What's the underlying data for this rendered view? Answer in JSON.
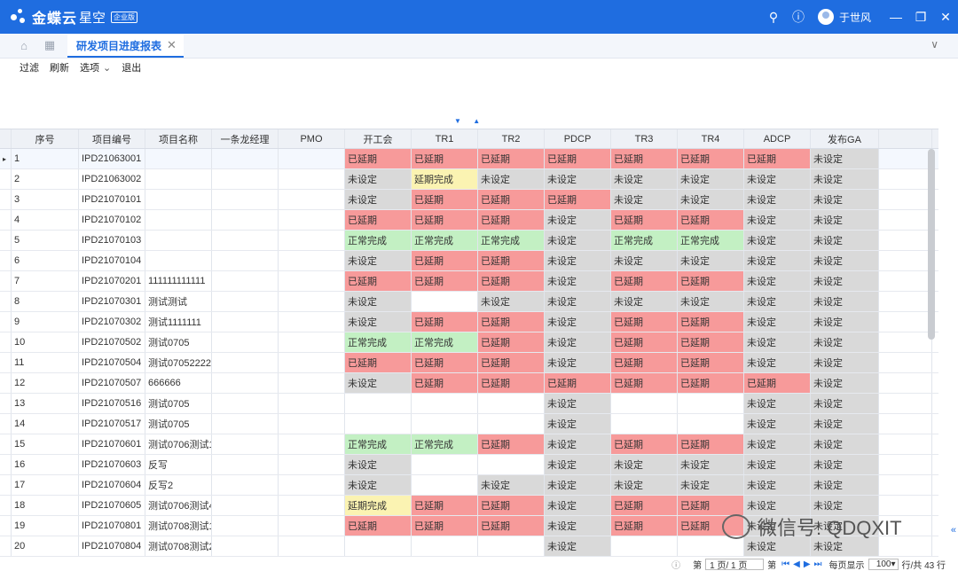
{
  "app": {
    "brand": "金蝶云",
    "brand_sub": "星空",
    "badge": "企业版",
    "user": "于世风"
  },
  "tabs": [
    {
      "label": "研发项目进度报表"
    }
  ],
  "toolbar": {
    "filter": "过滤",
    "refresh": "刷新",
    "options": "选项",
    "exit": "退出"
  },
  "columns": [
    "序号",
    "项目编号",
    "项目名称",
    "一条龙经理",
    "PMO",
    "开工会",
    "TR1",
    "TR2",
    "PDCP",
    "TR3",
    "TR4",
    "ADCP",
    "发布GA"
  ],
  "colors": {
    "red": "#f79a9a",
    "grey": "#d9d9d9",
    "green": "#c3f0c3",
    "yellow": "#fbf3b2",
    "accent": "#1f6de0"
  },
  "rows": [
    {
      "seq": "1",
      "code": "IPD21063001",
      "name": "",
      "s": [
        "已延期",
        "已延期",
        "已延期",
        "已延期",
        "已延期",
        "已延期",
        "已延期",
        "未设定"
      ],
      "c": [
        "r",
        "r",
        "r",
        "r",
        "r",
        "r",
        "r",
        "g"
      ]
    },
    {
      "seq": "2",
      "code": "IPD21063002",
      "name": "",
      "s": [
        "未设定",
        "延期完成",
        "未设定",
        "未设定",
        "未设定",
        "未设定",
        "未设定",
        "未设定"
      ],
      "c": [
        "g",
        "y",
        "g",
        "g",
        "g",
        "g",
        "g",
        "g"
      ]
    },
    {
      "seq": "3",
      "code": "IPD21070101",
      "name": "",
      "s": [
        "未设定",
        "已延期",
        "已延期",
        "已延期",
        "未设定",
        "未设定",
        "未设定",
        "未设定"
      ],
      "c": [
        "g",
        "r",
        "r",
        "r",
        "g",
        "g",
        "g",
        "g"
      ]
    },
    {
      "seq": "4",
      "code": "IPD21070102",
      "name": "",
      "s": [
        "已延期",
        "已延期",
        "已延期",
        "未设定",
        "已延期",
        "已延期",
        "未设定",
        "未设定"
      ],
      "c": [
        "r",
        "r",
        "r",
        "g",
        "r",
        "r",
        "g",
        "g"
      ]
    },
    {
      "seq": "5",
      "code": "IPD21070103",
      "name": "",
      "s": [
        "正常完成",
        "正常完成",
        "正常完成",
        "未设定",
        "正常完成",
        "正常完成",
        "未设定",
        "未设定"
      ],
      "c": [
        "gr",
        "gr",
        "gr",
        "g",
        "gr",
        "gr",
        "g",
        "g"
      ]
    },
    {
      "seq": "6",
      "code": "IPD21070104",
      "name": "",
      "s": [
        "未设定",
        "已延期",
        "已延期",
        "未设定",
        "未设定",
        "未设定",
        "未设定",
        "未设定"
      ],
      "c": [
        "g",
        "r",
        "r",
        "g",
        "g",
        "g",
        "g",
        "g"
      ]
    },
    {
      "seq": "7",
      "code": "IPD21070201",
      "name": "111111111111",
      "s": [
        "已延期",
        "已延期",
        "已延期",
        "未设定",
        "已延期",
        "已延期",
        "未设定",
        "未设定"
      ],
      "c": [
        "r",
        "r",
        "r",
        "g",
        "r",
        "r",
        "g",
        "g"
      ]
    },
    {
      "seq": "8",
      "code": "IPD21070301",
      "name": "测试测试",
      "s": [
        "未设定",
        "",
        "未设定",
        "未设定",
        "未设定",
        "未设定",
        "未设定",
        "未设定"
      ],
      "c": [
        "g",
        "w",
        "g",
        "g",
        "g",
        "g",
        "g",
        "g"
      ]
    },
    {
      "seq": "9",
      "code": "IPD21070302",
      "name": "测试1111111",
      "s": [
        "未设定",
        "已延期",
        "已延期",
        "未设定",
        "已延期",
        "已延期",
        "未设定",
        "未设定"
      ],
      "c": [
        "g",
        "r",
        "r",
        "g",
        "r",
        "r",
        "g",
        "g"
      ]
    },
    {
      "seq": "10",
      "code": "IPD21070502",
      "name": "测试0705",
      "s": [
        "正常完成",
        "正常完成",
        "已延期",
        "未设定",
        "已延期",
        "已延期",
        "未设定",
        "未设定"
      ],
      "c": [
        "gr",
        "gr",
        "r",
        "g",
        "r",
        "r",
        "g",
        "g"
      ]
    },
    {
      "seq": "11",
      "code": "IPD21070504",
      "name": "测试07052222",
      "s": [
        "已延期",
        "已延期",
        "已延期",
        "未设定",
        "已延期",
        "已延期",
        "未设定",
        "未设定"
      ],
      "c": [
        "r",
        "r",
        "r",
        "g",
        "r",
        "r",
        "g",
        "g"
      ]
    },
    {
      "seq": "12",
      "code": "IPD21070507",
      "name": "666666",
      "s": [
        "未设定",
        "已延期",
        "已延期",
        "已延期",
        "已延期",
        "已延期",
        "已延期",
        "未设定"
      ],
      "c": [
        "g",
        "r",
        "r",
        "r",
        "r",
        "r",
        "r",
        "g"
      ]
    },
    {
      "seq": "13",
      "code": "IPD21070516",
      "name": "测试0705",
      "s": [
        "",
        "",
        "",
        "未设定",
        "",
        "",
        "未设定",
        "未设定"
      ],
      "c": [
        "w",
        "w",
        "w",
        "g",
        "w",
        "w",
        "g",
        "g"
      ]
    },
    {
      "seq": "14",
      "code": "IPD21070517",
      "name": "测试0705",
      "s": [
        "",
        "",
        "",
        "未设定",
        "",
        "",
        "未设定",
        "未设定"
      ],
      "c": [
        "w",
        "w",
        "w",
        "g",
        "w",
        "w",
        "g",
        "g"
      ]
    },
    {
      "seq": "15",
      "code": "IPD21070601",
      "name": "测试0706测试1",
      "s": [
        "正常完成",
        "正常完成",
        "已延期",
        "未设定",
        "已延期",
        "已延期",
        "未设定",
        "未设定"
      ],
      "c": [
        "gr",
        "gr",
        "r",
        "g",
        "r",
        "r",
        "g",
        "g"
      ]
    },
    {
      "seq": "16",
      "code": "IPD21070603",
      "name": "反写",
      "s": [
        "未设定",
        "",
        "",
        "未设定",
        "未设定",
        "未设定",
        "未设定",
        "未设定"
      ],
      "c": [
        "g",
        "w",
        "w",
        "g",
        "g",
        "g",
        "g",
        "g"
      ]
    },
    {
      "seq": "17",
      "code": "IPD21070604",
      "name": "反写2",
      "s": [
        "未设定",
        "",
        "未设定",
        "未设定",
        "未设定",
        "未设定",
        "未设定",
        "未设定"
      ],
      "c": [
        "g",
        "w",
        "g",
        "g",
        "g",
        "g",
        "g",
        "g"
      ]
    },
    {
      "seq": "18",
      "code": "IPD21070605",
      "name": "测试0706测试4",
      "s": [
        "延期完成",
        "已延期",
        "已延期",
        "未设定",
        "已延期",
        "已延期",
        "未设定",
        "未设定"
      ],
      "c": [
        "y",
        "r",
        "r",
        "g",
        "r",
        "r",
        "g",
        "g"
      ]
    },
    {
      "seq": "19",
      "code": "IPD21070801",
      "name": "测试0708测试1",
      "s": [
        "已延期",
        "已延期",
        "已延期",
        "未设定",
        "已延期",
        "已延期",
        "未设定",
        "未设定"
      ],
      "c": [
        "r",
        "r",
        "r",
        "g",
        "r",
        "r",
        "g",
        "g"
      ]
    },
    {
      "seq": "20",
      "code": "IPD21070804",
      "name": "测试0708测试2",
      "s": [
        "",
        "",
        "",
        "未设定",
        "",
        "",
        "未设定",
        "未设定"
      ],
      "c": [
        "w",
        "w",
        "w",
        "g",
        "w",
        "w",
        "g",
        "g"
      ]
    }
  ],
  "footer": {
    "page_label": "第",
    "page_value": "1 页/ 1 页",
    "page_suffix": "第",
    "per_page_label": "每页显示",
    "per_page": "100",
    "rows_total": "行/共 43 行"
  },
  "watermark": {
    "text": "微信号: QDQXIT"
  }
}
